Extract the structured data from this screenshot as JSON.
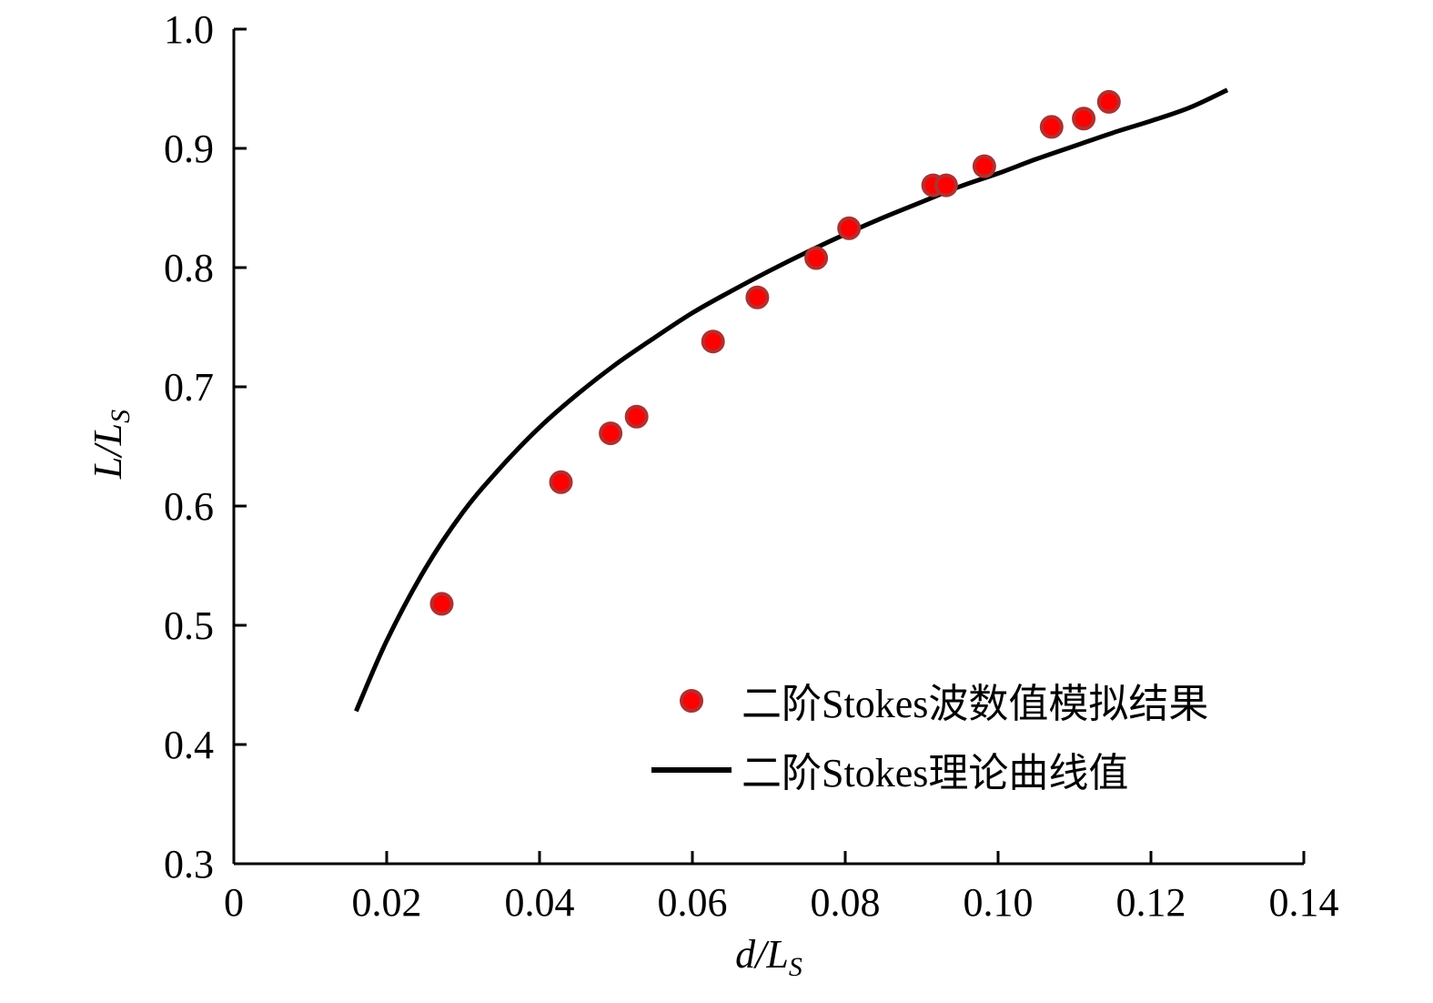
{
  "chart_data": {
    "type": "scatter",
    "xlabel": {
      "main": "d/L",
      "sub": "S"
    },
    "ylabel": {
      "main": "L/L",
      "sub": "S"
    },
    "xlim": [
      0,
      0.14
    ],
    "ylim": [
      0.3,
      1.0
    ],
    "x_ticks": [
      {
        "value": 0,
        "label": "0"
      },
      {
        "value": 0.02,
        "label": "0.02"
      },
      {
        "value": 0.04,
        "label": "0.04"
      },
      {
        "value": 0.06,
        "label": "0.06"
      },
      {
        "value": 0.08,
        "label": "0.08"
      },
      {
        "value": 0.1,
        "label": "0.10"
      },
      {
        "value": 0.12,
        "label": "0.12"
      },
      {
        "value": 0.14,
        "label": "0.14"
      }
    ],
    "y_ticks": [
      {
        "value": 0.3,
        "label": "0.3"
      },
      {
        "value": 0.4,
        "label": "0.4"
      },
      {
        "value": 0.5,
        "label": "0.5"
      },
      {
        "value": 0.6,
        "label": "0.6"
      },
      {
        "value": 0.7,
        "label": "0.7"
      },
      {
        "value": 0.8,
        "label": "0.8"
      },
      {
        "value": 0.9,
        "label": "0.9"
      },
      {
        "value": 1.0,
        "label": "1.0"
      }
    ],
    "grid": false,
    "legend_position": "bottom-right",
    "series": [
      {
        "name": "二阶Stokes波数值模拟结果",
        "kind": "scatter",
        "color": "#ff0000",
        "edge_color": "#b03030",
        "points": [
          [
            0.0272,
            0.518
          ],
          [
            0.0428,
            0.62
          ],
          [
            0.0493,
            0.661
          ],
          [
            0.0527,
            0.675
          ],
          [
            0.0627,
            0.738
          ],
          [
            0.0685,
            0.775
          ],
          [
            0.0762,
            0.808
          ],
          [
            0.0805,
            0.833
          ],
          [
            0.0915,
            0.869
          ],
          [
            0.0932,
            0.869
          ],
          [
            0.0982,
            0.885
          ],
          [
            0.107,
            0.918
          ],
          [
            0.1112,
            0.925
          ],
          [
            0.1145,
            0.939
          ]
        ]
      },
      {
        "name": "二阶Stokes理论曲线值",
        "kind": "line",
        "color": "#000000",
        "points": [
          [
            0.016,
            0.428
          ],
          [
            0.02,
            0.487
          ],
          [
            0.025,
            0.547
          ],
          [
            0.03,
            0.595
          ],
          [
            0.035,
            0.633
          ],
          [
            0.04,
            0.666
          ],
          [
            0.045,
            0.694
          ],
          [
            0.05,
            0.719
          ],
          [
            0.055,
            0.741
          ],
          [
            0.06,
            0.762
          ],
          [
            0.065,
            0.78
          ],
          [
            0.07,
            0.797
          ],
          [
            0.075,
            0.813
          ],
          [
            0.08,
            0.828
          ],
          [
            0.085,
            0.842
          ],
          [
            0.09,
            0.855
          ],
          [
            0.095,
            0.868
          ],
          [
            0.1,
            0.879
          ],
          [
            0.105,
            0.891
          ],
          [
            0.11,
            0.902
          ],
          [
            0.115,
            0.913
          ],
          [
            0.12,
            0.923
          ],
          [
            0.125,
            0.934
          ],
          [
            0.13,
            0.949
          ]
        ]
      }
    ]
  }
}
